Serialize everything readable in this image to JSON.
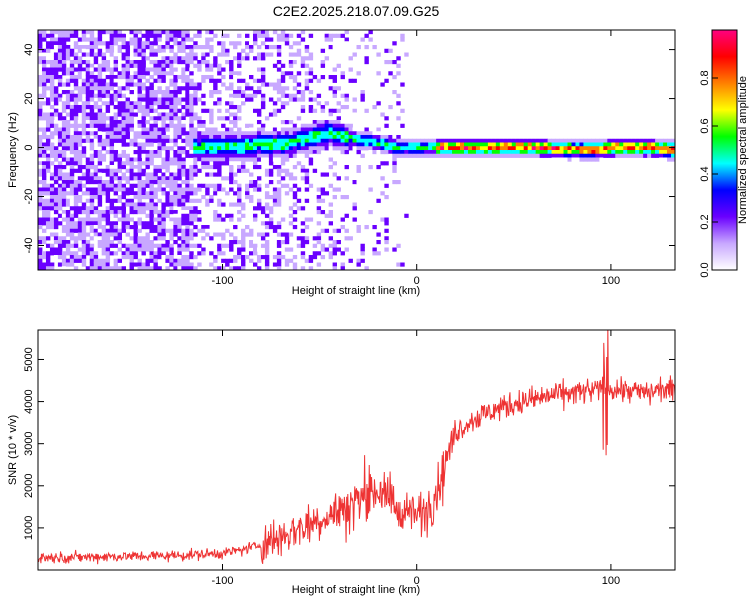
{
  "title": "C2E2.2025.218.07.09.G25",
  "chart_data": [
    {
      "type": "heatmap",
      "xlabel": "Height of straight line (km)",
      "ylabel": "Frequency (Hz)",
      "xlim": [
        -195,
        133
      ],
      "ylim": [
        -50,
        48
      ],
      "xticks": [
        -100,
        0,
        100
      ],
      "xtick_labels": [
        "-100",
        "0",
        "100"
      ],
      "yticks": [
        -40,
        -20,
        0,
        20,
        40
      ],
      "ytick_labels": [
        "-40",
        "-20",
        "0",
        "20",
        "40"
      ],
      "colorbar": {
        "label": "Normalized spectral amplitude",
        "range": [
          0,
          1
        ],
        "ticks": [
          0,
          0.2,
          0.4,
          0.6,
          0.8
        ],
        "tick_labels": [
          "0.0",
          "0.2",
          "0.4",
          "0.6",
          "0.8"
        ],
        "colors": [
          "#ffffff",
          "#c8a8ff",
          "#6a00ff",
          "#0000ff",
          "#00ffff",
          "#00ff00",
          "#ffff00",
          "#ff8000",
          "#ff0000",
          "#ff0080"
        ]
      },
      "ridge": {
        "x": [
          -115,
          -100,
          -90,
          -80,
          -70,
          -60,
          -50,
          -45,
          -40,
          -35,
          -30,
          -20,
          -10,
          0,
          10,
          30,
          60,
          90,
          100,
          120,
          133
        ],
        "frequency": [
          0,
          0.5,
          0,
          1.5,
          1,
          3,
          5,
          6,
          5,
          4,
          3,
          2,
          0,
          0,
          0,
          0,
          0,
          -1,
          0,
          0,
          -1
        ]
      }
    },
    {
      "type": "line",
      "xlabel": "Height of straight line (km)",
      "ylabel": "SNR (10 * v/v)",
      "xlim": [
        -195,
        133
      ],
      "ylim": [
        0,
        5700
      ],
      "xticks": [
        -100,
        0,
        100
      ],
      "xtick_labels": [
        "-100",
        "0",
        "100"
      ],
      "yticks": [
        1000,
        2000,
        3000,
        4000,
        5000
      ],
      "ytick_labels": [
        "1000",
        "2000",
        "3000",
        "4000",
        "5000"
      ],
      "color": "#ee3333",
      "x": [
        -195,
        -180,
        -160,
        -140,
        -120,
        -100,
        -90,
        -80,
        -70,
        -60,
        -50,
        -40,
        -30,
        -20,
        -10,
        0,
        10,
        15,
        20,
        30,
        40,
        50,
        60,
        70,
        80,
        90,
        100,
        110,
        120,
        125,
        133
      ],
      "y": [
        300,
        300,
        320,
        330,
        350,
        400,
        480,
        600,
        800,
        1000,
        1200,
        1400,
        1700,
        1900,
        1500,
        1300,
        1800,
        2600,
        3300,
        3600,
        3800,
        3950,
        4050,
        4150,
        4200,
        4250,
        4300,
        4250,
        4200,
        4300,
        4250
      ]
    }
  ]
}
